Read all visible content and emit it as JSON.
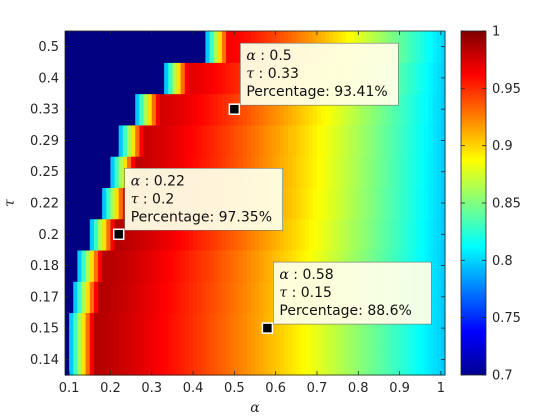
{
  "chart_data": {
    "type": "heatmap",
    "title": "",
    "xlabel": "α",
    "ylabel": "τ",
    "x_ticks": [
      "0.1",
      "0.2",
      "0.3",
      "0.4",
      "0.5",
      "0.6",
      "0.7",
      "0.8",
      "0.9",
      "1"
    ],
    "y_ticks": [
      "0.14",
      "0.15",
      "0.17",
      "0.18",
      "0.2",
      "0.22",
      "0.25",
      "0.29",
      "0.33",
      "0.4",
      "0.5"
    ],
    "y_values": [
      0.14,
      0.15,
      0.17,
      0.18,
      0.2,
      0.22,
      0.25,
      0.29,
      0.33,
      0.4,
      0.5
    ],
    "xlim": [
      0.09,
      1.01
    ],
    "color_scale": {
      "colormap": "jet",
      "min": 0.7,
      "max": 1.0
    },
    "colorbar_ticks": [
      "0.7",
      "0.75",
      "0.8",
      "0.85",
      "0.9",
      "0.95",
      "1"
    ],
    "infeasible_boundary": [
      {
        "tau": 0.14,
        "alpha_min": 0.1
      },
      {
        "tau": 0.15,
        "alpha_min": 0.1
      },
      {
        "tau": 0.17,
        "alpha_min": 0.11
      },
      {
        "tau": 0.18,
        "alpha_min": 0.12
      },
      {
        "tau": 0.2,
        "alpha_min": 0.15
      },
      {
        "tau": 0.22,
        "alpha_min": 0.18
      },
      {
        "tau": 0.25,
        "alpha_min": 0.2
      },
      {
        "tau": 0.29,
        "alpha_min": 0.22
      },
      {
        "tau": 0.33,
        "alpha_min": 0.26
      },
      {
        "tau": 0.4,
        "alpha_min": 0.33
      },
      {
        "tau": 0.5,
        "alpha_min": 0.43
      }
    ],
    "highlighted_points": [
      {
        "alpha": 0.5,
        "tau": 0.33,
        "percentage": "93.41%",
        "label_alpha": "0.5",
        "label_tau": "0.33",
        "label_position": "top-right"
      },
      {
        "alpha": 0.22,
        "tau": 0.2,
        "percentage": "97.35%",
        "label_alpha": "0.22",
        "label_tau": "0.2",
        "label_position": "top-right"
      },
      {
        "alpha": 0.58,
        "tau": 0.15,
        "percentage": "88.6%",
        "label_alpha": "0.58",
        "label_tau": "0.15",
        "label_position": "top-right"
      }
    ],
    "datatip_labels": {
      "alpha": "α",
      "tau": "τ",
      "percentage": "Percentage"
    }
  }
}
